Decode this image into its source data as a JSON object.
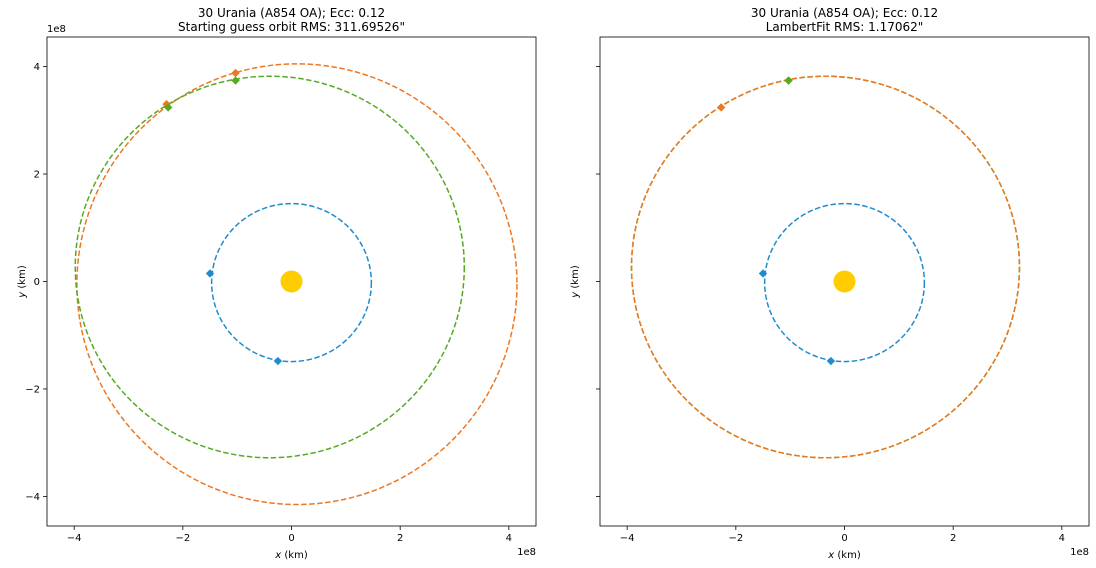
{
  "chart_data": [
    {
      "type": "scatter",
      "title_line1": "30 Urania (A854 OA); Ecc: 0.12",
      "title_line2": "Starting guess orbit RMS: 311.69526\"",
      "xlabel": "x (km)",
      "ylabel": "y (km)",
      "x_offset_label": "1e8",
      "y_offset_label": "1e8",
      "xlim": [
        -4.5,
        4.5
      ],
      "ylim": [
        -4.55,
        4.55
      ],
      "xticks": [
        -4,
        -2,
        0,
        2,
        4
      ],
      "yticks": [
        -4,
        -2,
        0,
        2,
        4
      ],
      "xtick_labels": [
        "−4",
        "−2",
        "0",
        "2",
        "4"
      ],
      "ytick_labels": [
        "−4",
        "−2",
        "0",
        "2",
        "4"
      ],
      "grid": false,
      "sun": {
        "x": 0,
        "y": 0,
        "color": "#ffcc00"
      },
      "orbits": [
        {
          "color": "#1f8ccf",
          "cx": 0.0,
          "cy": -0.02,
          "rx": 1.47,
          "ry": 1.47
        },
        {
          "color": "#ee7722",
          "cx": 0.1,
          "cy": -0.05,
          "rx": 4.05,
          "ry": 4.1
        },
        {
          "color": "#55aa22",
          "cx": -0.4,
          "cy": 0.27,
          "rx": 3.58,
          "ry": 3.55
        }
      ],
      "points": [
        {
          "color": "#1f8ccf",
          "x": -1.5,
          "y": 0.15
        },
        {
          "color": "#1f8ccf",
          "x": -0.25,
          "y": -1.48
        },
        {
          "color": "#ee7722",
          "x": -2.3,
          "y": 3.3
        },
        {
          "color": "#ee7722",
          "x": -1.03,
          "y": 3.88
        },
        {
          "color": "#55aa22",
          "x": -2.27,
          "y": 3.24
        },
        {
          "color": "#55aa22",
          "x": -1.03,
          "y": 3.74
        }
      ]
    },
    {
      "type": "scatter",
      "title_line1": "30 Urania (A854 OA); Ecc: 0.12",
      "title_line2": "LambertFit RMS: 1.17062\"",
      "xlabel": "x (km)",
      "ylabel": "y (km)",
      "x_offset_label": "1e8",
      "y_offset_label": "",
      "xlim": [
        -4.5,
        4.5
      ],
      "ylim": [
        -4.55,
        4.55
      ],
      "xticks": [
        -4,
        -2,
        0,
        2,
        4
      ],
      "yticks": [
        -4,
        -2,
        0,
        2,
        4
      ],
      "xtick_labels": [
        "−4",
        "−2",
        "0",
        "2",
        "4"
      ],
      "ytick_labels": [],
      "grid": false,
      "sun": {
        "x": 0,
        "y": 0,
        "color": "#ffcc00"
      },
      "orbits": [
        {
          "color": "#1f8ccf",
          "cx": 0.0,
          "cy": -0.02,
          "rx": 1.47,
          "ry": 1.47
        },
        {
          "color": "#55aa22",
          "cx": -0.35,
          "cy": 0.27,
          "rx": 3.57,
          "ry": 3.55
        },
        {
          "color": "#ee7722",
          "cx": -0.35,
          "cy": 0.27,
          "rx": 3.57,
          "ry": 3.55
        }
      ],
      "points": [
        {
          "color": "#1f8ccf",
          "x": -1.5,
          "y": 0.15
        },
        {
          "color": "#1f8ccf",
          "x": -0.25,
          "y": -1.48
        },
        {
          "color": "#ee7722",
          "x": -2.27,
          "y": 3.24
        },
        {
          "color": "#ee7722",
          "x": -1.03,
          "y": 3.74
        },
        {
          "color": "#55aa22",
          "x": -1.03,
          "y": 3.74
        }
      ]
    }
  ]
}
